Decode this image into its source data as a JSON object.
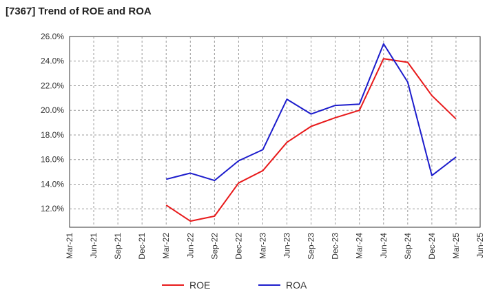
{
  "chart_data": {
    "type": "line",
    "title": "[7367]  Trend of ROE and ROA",
    "xlabel": "",
    "ylabel": "",
    "categories": [
      "Mar-21",
      "Jun-21",
      "Sep-21",
      "Dec-21",
      "Mar-22",
      "Jun-22",
      "Sep-22",
      "Dec-22",
      "Mar-23",
      "Jun-23",
      "Sep-23",
      "Dec-23",
      "Mar-24",
      "Jun-24",
      "Sep-24",
      "Dec-24",
      "Mar-25",
      "Jun-25"
    ],
    "ylim": [
      10.5,
      26.0
    ],
    "yticks": [
      12.0,
      14.0,
      16.0,
      18.0,
      20.0,
      22.0,
      24.0,
      26.0
    ],
    "ytick_labels": [
      "12.0%",
      "14.0%",
      "16.0%",
      "18.0%",
      "20.0%",
      "22.0%",
      "24.0%",
      "26.0%"
    ],
    "grid": true,
    "legend_position": "bottom-center",
    "series": [
      {
        "name": "ROE",
        "color": "#e8191a",
        "values": [
          null,
          null,
          null,
          null,
          12.3,
          11.0,
          11.4,
          14.1,
          15.1,
          17.4,
          18.7,
          19.4,
          20.0,
          24.2,
          23.9,
          21.2,
          19.3,
          null
        ]
      },
      {
        "name": "ROA",
        "color": "#1c1ccc",
        "values": [
          null,
          null,
          null,
          null,
          14.4,
          14.9,
          14.3,
          15.9,
          16.8,
          20.9,
          19.7,
          20.4,
          20.5,
          25.4,
          22.3,
          14.7,
          16.2,
          null
        ]
      }
    ]
  }
}
